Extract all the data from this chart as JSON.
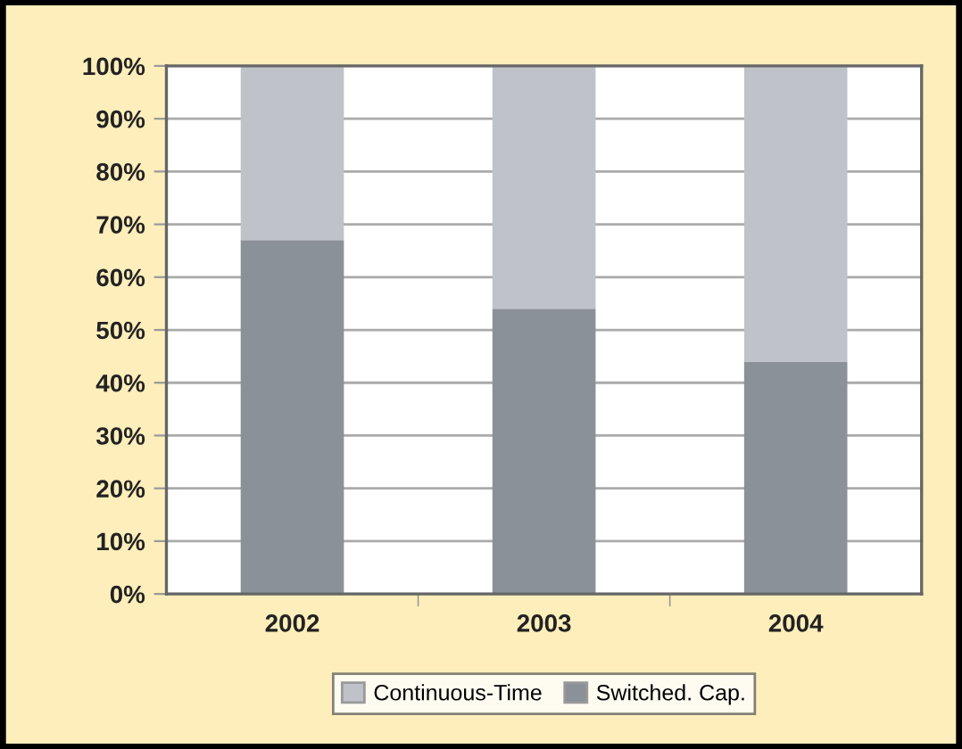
{
  "chart_data": {
    "type": "bar",
    "stacked": true,
    "categories": [
      "2002",
      "2003",
      "2004"
    ],
    "series": [
      {
        "name": "Switched. Cap.",
        "color": "#8b9198",
        "values": [
          67,
          54,
          44
        ]
      },
      {
        "name": "Continuous-Time",
        "color": "#bfc3c9",
        "values": [
          33,
          46,
          56
        ]
      }
    ],
    "ylim": [
      0,
      100
    ],
    "yticks": [
      {
        "value": 0,
        "label": "0%"
      },
      {
        "value": 10,
        "label": "10%"
      },
      {
        "value": 20,
        "label": "20%"
      },
      {
        "value": 30,
        "label": "30%"
      },
      {
        "value": 40,
        "label": "40%"
      },
      {
        "value": 50,
        "label": "50%"
      },
      {
        "value": 60,
        "label": "60%"
      },
      {
        "value": 70,
        "label": "70%"
      },
      {
        "value": 80,
        "label": "80%"
      },
      {
        "value": 90,
        "label": "90%"
      },
      {
        "value": 100,
        "label": "100%"
      }
    ],
    "grid": "y",
    "legend": "bottom"
  }
}
